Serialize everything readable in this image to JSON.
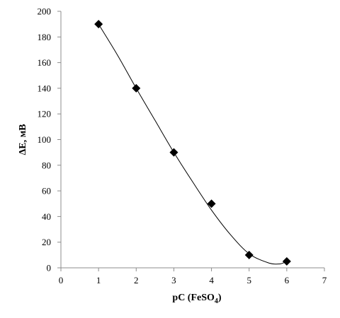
{
  "chart_data": {
    "type": "scatter",
    "title": "",
    "xlabel": "pC (FeSO",
    "xlabel_sub": "4",
    "xlabel_close": ")",
    "ylabel": "ΔE, мВ",
    "xlim": [
      0,
      7
    ],
    "ylim": [
      0,
      200
    ],
    "x_ticks": [
      0,
      1,
      2,
      3,
      4,
      5,
      6,
      7
    ],
    "y_ticks": [
      0,
      20,
      40,
      60,
      80,
      100,
      120,
      140,
      160,
      180,
      200
    ],
    "grid": false,
    "legend": "none",
    "series": [
      {
        "marker": "diamond",
        "color": "#000000",
        "x": [
          1,
          2,
          3,
          4,
          5,
          6
        ],
        "y": [
          190,
          140,
          90,
          50,
          10,
          5
        ]
      }
    ],
    "trendline": {
      "color": "#000000",
      "x": [
        1,
        1.5,
        2,
        2.5,
        3,
        3.5,
        4,
        4.5,
        5,
        5.5,
        5.8,
        6
      ],
      "y": [
        190,
        166,
        140,
        115,
        90,
        67,
        45,
        26,
        11,
        4,
        3,
        5
      ]
    }
  }
}
